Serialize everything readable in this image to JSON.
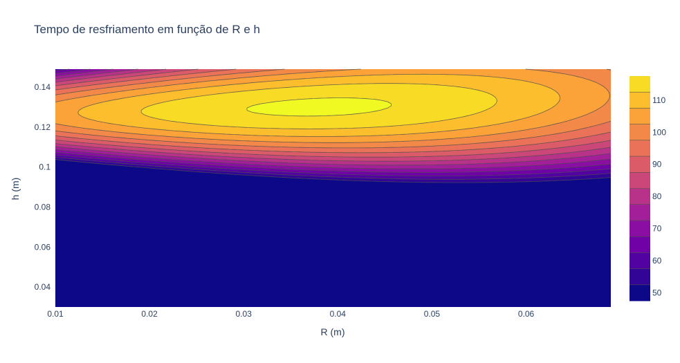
{
  "chart_data": {
    "type": "contour",
    "title": "Tempo de resfriamento em função de R e h",
    "xlabel": "R (m)",
    "ylabel": "h (m)",
    "xlim": [
      0.01,
      0.069
    ],
    "ylim": [
      0.03,
      0.149
    ],
    "x_ticks": [
      {
        "value": 0.01,
        "label": "0.01"
      },
      {
        "value": 0.02,
        "label": "0.02"
      },
      {
        "value": 0.03,
        "label": "0.03"
      },
      {
        "value": 0.04,
        "label": "0.04"
      },
      {
        "value": 0.05,
        "label": "0.05"
      },
      {
        "value": 0.06,
        "label": "0.06"
      }
    ],
    "y_ticks": [
      {
        "value": 0.04,
        "label": "0.04"
      },
      {
        "value": 0.06,
        "label": "0.06"
      },
      {
        "value": 0.08,
        "label": "0.08"
      },
      {
        "value": 0.1,
        "label": "0.1"
      },
      {
        "value": 0.12,
        "label": "0.12"
      },
      {
        "value": 0.14,
        "label": "0.14"
      }
    ],
    "contour_start": 47.5,
    "contour_size": 5,
    "contour_end": 117.5,
    "zmin": 47.5,
    "zmax": 117.5,
    "zmax_peak": 118.5,
    "peak": {
      "R": 0.038,
      "h": 0.13
    },
    "colorscale": "Plasma",
    "colorscale_colors": [
      "#0d0887",
      "#46039f",
      "#7201a8",
      "#9c179e",
      "#bd3786",
      "#d8576b",
      "#ed7953",
      "#fb9f3a",
      "#fdca26",
      "#f0f921"
    ],
    "colorbar_ticks": [
      {
        "value": 50,
        "label": "50"
      },
      {
        "value": 60,
        "label": "60"
      },
      {
        "value": 70,
        "label": "70"
      },
      {
        "value": 80,
        "label": "80"
      },
      {
        "value": 90,
        "label": "90"
      },
      {
        "value": 100,
        "label": "100"
      },
      {
        "value": 110,
        "label": "110"
      }
    ],
    "contour_line_color": "#4d4d4d",
    "grid": false,
    "legend": "colorbar-right"
  }
}
